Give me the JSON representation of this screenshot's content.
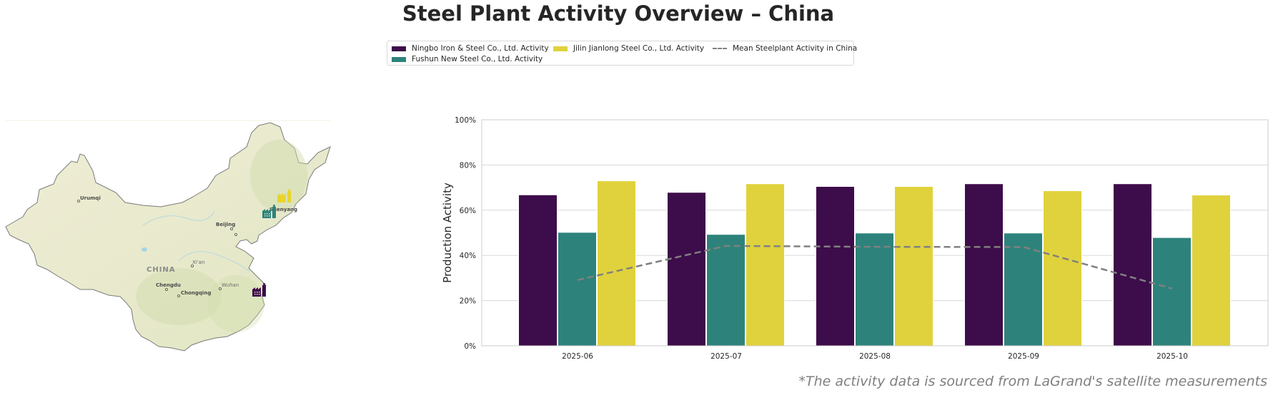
{
  "title": "Steel Plant Activity Overview – China",
  "footnote": "*The activity data is sourced from LaGrand's satellite measurements",
  "colors": {
    "ningbo": "#3d0c4a",
    "fushun": "#2d837b",
    "jilin": "#e0d23c",
    "mean": "#808080",
    "grid": "#d9d9d9"
  },
  "legend": [
    {
      "label": "Ningbo Iron & Steel Co., Ltd. Activity",
      "type": "bar",
      "color": "#3d0c4a"
    },
    {
      "label": "Fushun New Steel Co., Ltd. Activity",
      "type": "bar",
      "color": "#2d837b"
    },
    {
      "label": "Jilin Jianlong Steel Co., Ltd. Activity",
      "type": "bar",
      "color": "#e0d23c"
    },
    {
      "label": "Mean Steelplant Activity in China",
      "type": "dashed-line",
      "color": "#808080"
    }
  ],
  "map": {
    "country_label": "CHINA",
    "cities": [
      {
        "name": "Urumqi",
        "style": "bold"
      },
      {
        "name": "Beijing",
        "style": "bold"
      },
      {
        "name": "Shenyang",
        "style": "bold"
      },
      {
        "name": "Xi'an",
        "style": "light"
      },
      {
        "name": "Chengdu",
        "style": "bold"
      },
      {
        "name": "Chongqing",
        "style": "bold"
      },
      {
        "name": "Wuhan",
        "style": "light"
      }
    ],
    "plant_markers": [
      {
        "plant": "Ningbo Iron & Steel Co., Ltd.",
        "icon": "factory-icon",
        "color": "#3d0c4a"
      },
      {
        "plant": "Fushun New Steel Co., Ltd.",
        "icon": "factory-icon",
        "color": "#2d837b"
      },
      {
        "plant": "Jilin Jianlong Steel Co., Ltd.",
        "icon": "factory-icon",
        "color": "#e0d23c"
      }
    ]
  },
  "chart_data": {
    "type": "bar",
    "title": "Steel Plant Activity Overview – China",
    "xlabel": "",
    "ylabel": "Production Activity",
    "ylim": [
      0,
      100
    ],
    "yticks": [
      "0%",
      "20%",
      "40%",
      "60%",
      "80%",
      "100%"
    ],
    "ytick_values": [
      0,
      20,
      40,
      60,
      80,
      100
    ],
    "grid": true,
    "legend_position": "top-center",
    "categories": [
      "2025-06",
      "2025-07",
      "2025-08",
      "2025-09",
      "2025-10"
    ],
    "series": [
      {
        "name": "Ningbo Iron & Steel Co., Ltd. Activity",
        "type": "bar",
        "color": "#3d0c4a",
        "values": [
          66.8,
          67.9,
          70.5,
          71.7,
          71.7
        ]
      },
      {
        "name": "Fushun New Steel Co., Ltd. Activity",
        "type": "bar",
        "color": "#2d837b",
        "values": [
          50.2,
          49.3,
          49.9,
          49.9,
          47.9
        ]
      },
      {
        "name": "Jilin Jianlong Steel Co., Ltd. Activity",
        "type": "bar",
        "color": "#e0d23c",
        "values": [
          73.0,
          71.7,
          70.5,
          68.6,
          66.7
        ]
      },
      {
        "name": "Mean Steelplant Activity in China",
        "type": "line",
        "style": "dashed",
        "color": "#808080",
        "values": [
          29.1,
          44.2,
          43.8,
          43.7,
          25.3
        ]
      }
    ]
  }
}
